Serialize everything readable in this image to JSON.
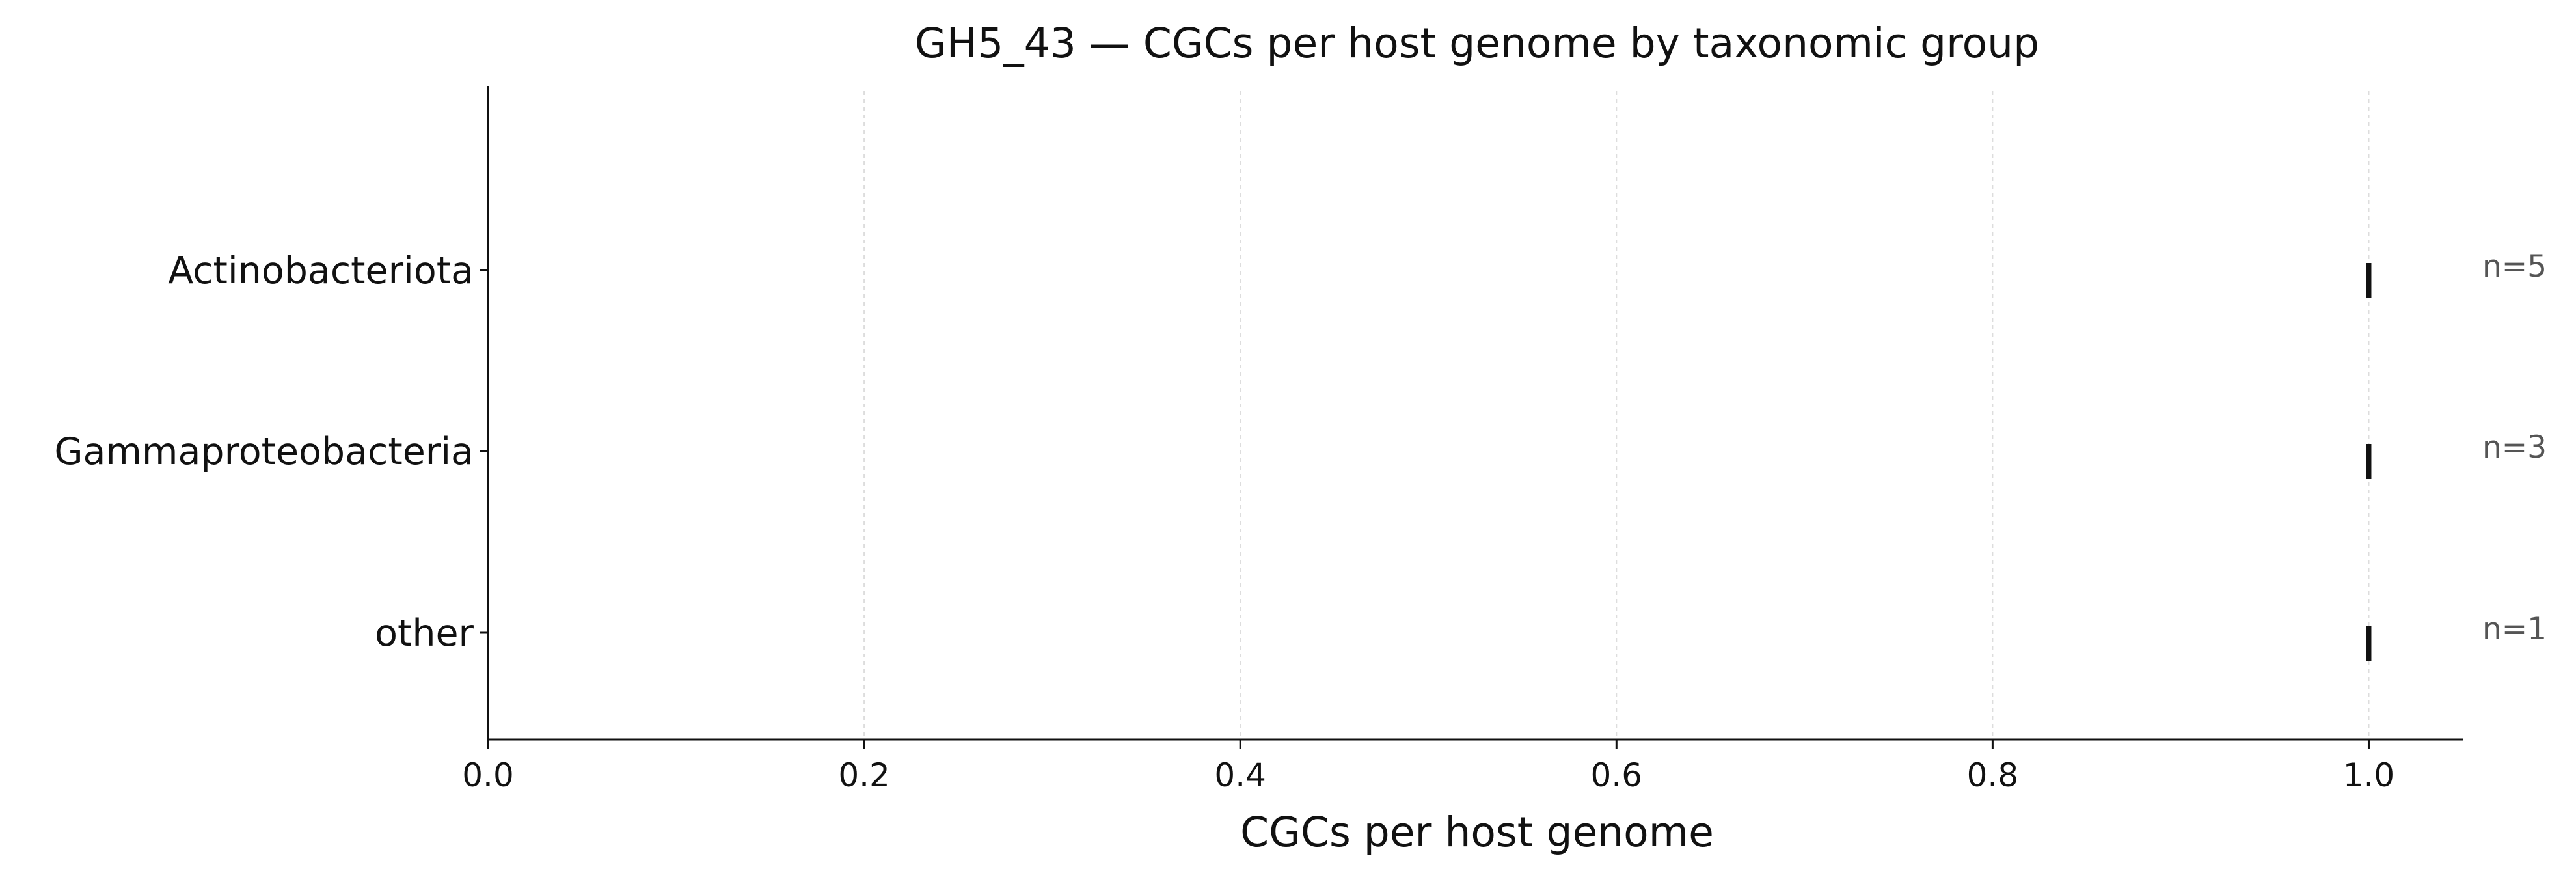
{
  "chart_data": {
    "type": "scatter",
    "title": "GH5_43 — CGCs per host genome by taxonomic group",
    "xlabel": "CGCs per host genome",
    "ylabel": "",
    "xlim": [
      0,
      1.05
    ],
    "xticks": [
      0.0,
      0.2,
      0.4,
      0.6,
      0.8,
      1.0
    ],
    "xtick_labels": [
      "0.0",
      "0.2",
      "0.4",
      "0.6",
      "0.8",
      "1.0"
    ],
    "grid": "x-dashed",
    "categories": [
      "Actinobacteriota",
      "Gammaproteobacteria",
      "other"
    ],
    "series": [
      {
        "values": [
          1.0,
          1.0,
          1.0
        ],
        "marker": "vertical-line"
      }
    ],
    "annotations": [
      "n=5",
      "n=3",
      "n=1"
    ],
    "colors": {
      "marker": "#111111",
      "axis": "#111111",
      "grid": "#dddddd",
      "annotation": "#555555"
    }
  }
}
